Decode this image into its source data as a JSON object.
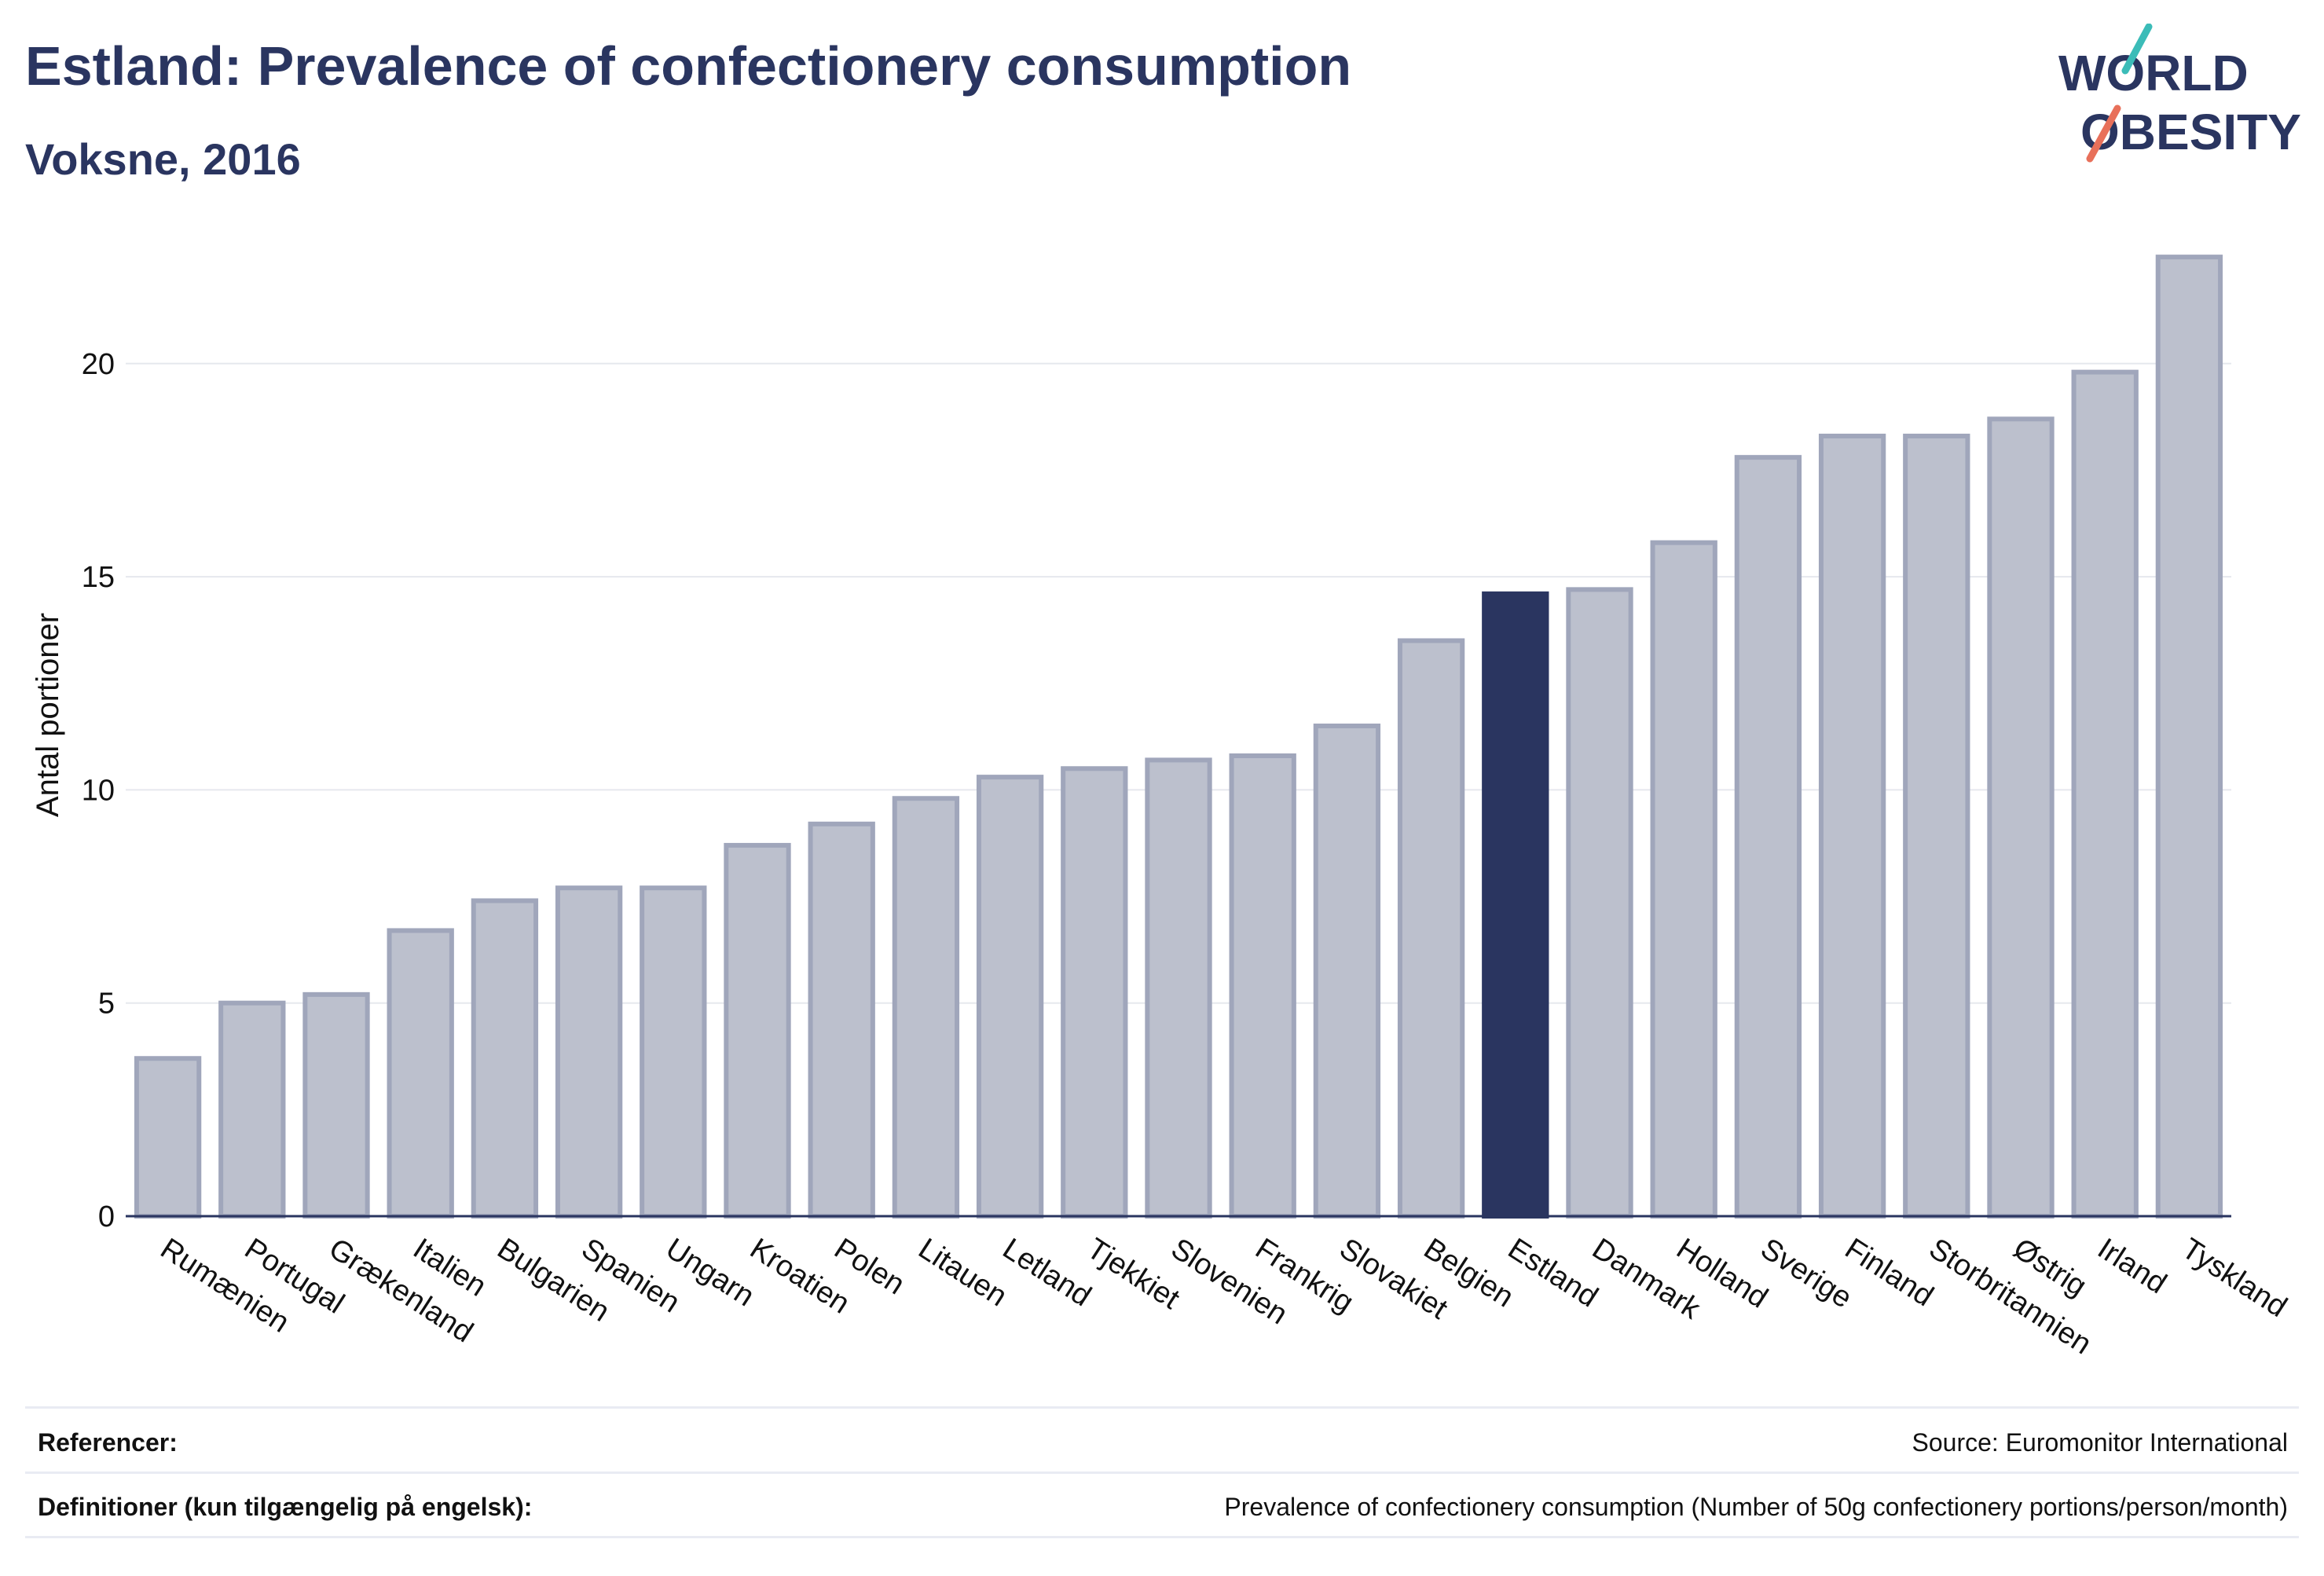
{
  "header": {
    "title": "Estland: Prevalence of confectionery consumption",
    "subtitle": "Voksne, 2016",
    "logo_text_line1": "WORLD",
    "logo_text_line2": "OBESITY"
  },
  "chart_data": {
    "type": "bar",
    "ylabel": "Antal portioner",
    "xlabel": "",
    "ylim": [
      0,
      23
    ],
    "yticks": [
      0,
      5,
      10,
      15,
      20
    ],
    "grid": true,
    "highlight": "Estland",
    "colors": {
      "bar": "#bcc0cd",
      "bar_border": "#a0a6bb",
      "highlight": "#2a3560",
      "grid": "#e6e8ee",
      "axis": "#2a3560"
    },
    "categories": [
      "Rumænien",
      "Portugal",
      "Grækenland",
      "Italien",
      "Bulgarien",
      "Spanien",
      "Ungarn",
      "Kroatien",
      "Polen",
      "Litauen",
      "Letland",
      "Tjekkiet",
      "Slovenien",
      "Frankrig",
      "Slovakiet",
      "Belgien",
      "Estland",
      "Danmark",
      "Holland",
      "Sverige",
      "Finland",
      "Storbritannien",
      "Østrig",
      "Irland",
      "Tyskland"
    ],
    "values": [
      3.7,
      5.0,
      5.2,
      6.7,
      7.4,
      7.7,
      7.7,
      8.7,
      9.2,
      9.8,
      10.3,
      10.5,
      10.7,
      10.8,
      11.5,
      13.5,
      14.6,
      14.7,
      15.8,
      17.8,
      18.3,
      18.3,
      18.7,
      19.8,
      22.5
    ]
  },
  "footer": {
    "references_label": "Referencer:",
    "references_value": "Source: Euromonitor International",
    "definitions_label": "Definitioner (kun tilgængelig på engelsk):",
    "definitions_value": "Prevalence of confectionery consumption (Number of 50g confectionery portions/person/month)"
  }
}
